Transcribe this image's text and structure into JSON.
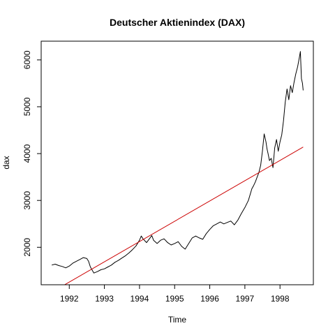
{
  "chart_data": {
    "type": "line",
    "title": "Deutscher Aktienindex (DAX)",
    "xlabel": "Time",
    "ylabel": "dax",
    "xlim": [
      1991.2,
      1998.95
    ],
    "ylim": [
      1200,
      6400
    ],
    "x_ticks": [
      1992,
      1993,
      1994,
      1995,
      1996,
      1997,
      1998
    ],
    "x_tick_labels": [
      "1992",
      "1993",
      "1994",
      "1995",
      "1996",
      "1997",
      "1998"
    ],
    "y_ticks": [
      2000,
      3000,
      4000,
      5000,
      6000
    ],
    "y_tick_labels": [
      "2000",
      "3000",
      "4000",
      "5000",
      "6000"
    ],
    "grid": false,
    "series": [
      {
        "color": "#000000",
        "x": [
          1991.5,
          1991.6,
          1991.7,
          1991.8,
          1991.9,
          1992.0,
          1992.1,
          1992.2,
          1992.3,
          1992.4,
          1992.5,
          1992.55,
          1992.6,
          1992.7,
          1992.8,
          1992.9,
          1993.0,
          1993.1,
          1993.2,
          1993.3,
          1993.4,
          1993.5,
          1993.6,
          1993.7,
          1993.8,
          1993.9,
          1994.0,
          1994.05,
          1994.1,
          1994.2,
          1994.3,
          1994.35,
          1994.4,
          1994.5,
          1994.6,
          1994.7,
          1994.8,
          1994.9,
          1995.0,
          1995.1,
          1995.2,
          1995.3,
          1995.4,
          1995.5,
          1995.6,
          1995.7,
          1995.8,
          1995.9,
          1996.0,
          1996.1,
          1996.2,
          1996.3,
          1996.4,
          1996.5,
          1996.6,
          1996.7,
          1996.8,
          1996.9,
          1997.0,
          1997.1,
          1997.2,
          1997.25,
          1997.3,
          1997.35,
          1997.4,
          1997.45,
          1997.5,
          1997.55,
          1997.6,
          1997.63,
          1997.66,
          1997.7,
          1997.75,
          1997.8,
          1997.85,
          1997.9,
          1997.95,
          1998.0,
          1998.05,
          1998.1,
          1998.15,
          1998.2,
          1998.25,
          1998.3,
          1998.35,
          1998.4,
          1998.45,
          1998.5,
          1998.55,
          1998.58,
          1998.61,
          1998.64,
          1998.66
        ],
        "y": [
          1620,
          1640,
          1610,
          1590,
          1560,
          1600,
          1660,
          1700,
          1740,
          1780,
          1760,
          1700,
          1580,
          1450,
          1480,
          1520,
          1540,
          1580,
          1620,
          1680,
          1720,
          1770,
          1820,
          1880,
          1950,
          2030,
          2150,
          2240,
          2180,
          2100,
          2200,
          2250,
          2150,
          2080,
          2150,
          2180,
          2100,
          2050,
          2080,
          2120,
          2020,
          1960,
          2080,
          2200,
          2240,
          2200,
          2170,
          2290,
          2380,
          2460,
          2500,
          2540,
          2500,
          2530,
          2560,
          2480,
          2580,
          2720,
          2850,
          3000,
          3250,
          3320,
          3400,
          3500,
          3600,
          3750,
          4050,
          4420,
          4250,
          4100,
          4000,
          3850,
          3900,
          3700,
          4120,
          4300,
          4050,
          4250,
          4400,
          4700,
          5100,
          5380,
          5150,
          5450,
          5300,
          5520,
          5700,
          5850,
          6050,
          6180,
          5600,
          5500,
          5350
        ]
      },
      {
        "color": "#cc0000",
        "x": [
          1991.5,
          1998.66
        ],
        "y": [
          1040,
          4140
        ]
      }
    ]
  }
}
